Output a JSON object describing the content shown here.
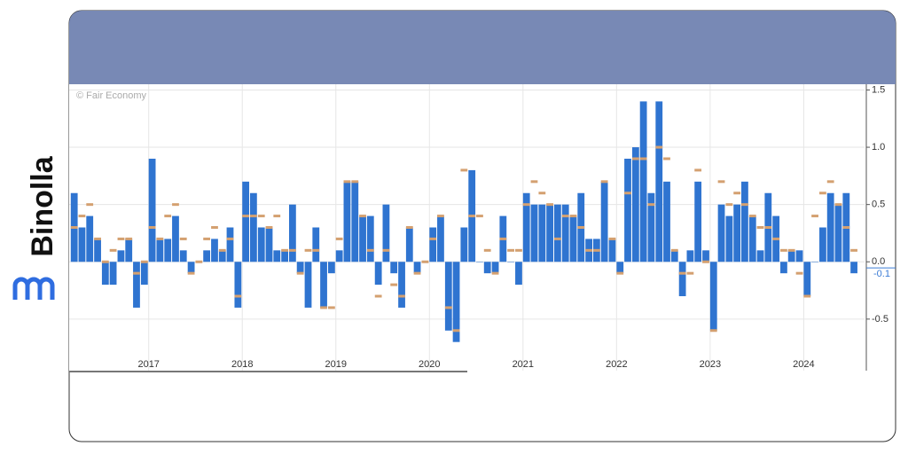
{
  "brand": "Binolla",
  "credit": "© Fair Economy",
  "chart_data": {
    "type": "bar",
    "x": [
      2016.167,
      2016.25,
      2016.333,
      2016.417,
      2016.5,
      2016.583,
      2016.667,
      2016.75,
      2016.833,
      2016.917,
      2017,
      2017.083,
      2017.167,
      2017.25,
      2017.333,
      2017.417,
      2017.5,
      2017.583,
      2017.667,
      2017.75,
      2017.833,
      2017.917,
      2018,
      2018.083,
      2018.167,
      2018.25,
      2018.333,
      2018.417,
      2018.5,
      2018.583,
      2018.667,
      2018.75,
      2018.833,
      2018.917,
      2019,
      2019.083,
      2019.167,
      2019.25,
      2019.333,
      2019.417,
      2019.5,
      2019.583,
      2019.667,
      2019.75,
      2019.833,
      2019.917,
      2020,
      2020.083,
      2020.167,
      2020.25,
      2020.333,
      2020.417,
      2020.5,
      2020.583,
      2020.667,
      2020.75,
      2020.833,
      2020.917,
      2021,
      2021.083,
      2021.167,
      2021.25,
      2021.333,
      2021.417,
      2021.5,
      2021.583,
      2021.667,
      2021.75,
      2021.833,
      2021.917,
      2022,
      2022.083,
      2022.167,
      2022.25,
      2022.333,
      2022.417,
      2022.5,
      2022.583,
      2022.667,
      2022.75,
      2022.833,
      2022.917,
      2023,
      2023.083,
      2023.167,
      2023.25,
      2023.333,
      2023.417,
      2023.5,
      2023.583,
      2023.667,
      2023.75,
      2023.833,
      2023.917,
      2024,
      2024.083,
      2024.167,
      2024.25,
      2024.333,
      2024.417,
      2024.5
    ],
    "bar_width": 0.0833,
    "series": [
      {
        "mark": "bar",
        "color": "#2f74d0",
        "values": [
          0.6,
          0.3,
          0.4,
          0.2,
          -0.2,
          -0.2,
          0.1,
          0.2,
          -0.4,
          -0.2,
          0.9,
          0.2,
          0.2,
          0.4,
          0.1,
          -0.1,
          0.0,
          0.1,
          0.2,
          0.1,
          0.3,
          -0.4,
          0.7,
          0.6,
          0.3,
          0.3,
          0.1,
          0.1,
          0.5,
          -0.1,
          -0.4,
          0.3,
          -0.4,
          -0.1,
          0.1,
          0.7,
          0.7,
          0.4,
          0.4,
          -0.2,
          0.5,
          -0.1,
          -0.4,
          0.3,
          -0.1,
          0.0,
          0.3,
          0.4,
          -0.6,
          -0.7,
          0.3,
          0.8,
          0.0,
          -0.1,
          -0.1,
          0.4,
          0.0,
          -0.2,
          0.6,
          0.5,
          0.5,
          0.5,
          0.5,
          0.5,
          0.4,
          0.6,
          0.2,
          0.2,
          0.7,
          0.2,
          -0.1,
          0.9,
          1.0,
          1.4,
          0.6,
          1.4,
          0.7,
          0.1,
          -0.3,
          0.1,
          0.7,
          0.1,
          -0.6,
          0.5,
          0.4,
          0.5,
          0.7,
          0.4,
          0.1,
          0.6,
          0.4,
          -0.1,
          0.1,
          0.1,
          -0.3,
          0.0,
          0.3,
          0.6,
          0.5,
          0.6,
          -0.1
        ]
      },
      {
        "mark": "dash",
        "color": "#d4a070",
        "values": [
          0.3,
          0.4,
          0.5,
          0.2,
          0.0,
          0.1,
          0.2,
          0.2,
          -0.1,
          0.0,
          0.3,
          0.2,
          0.4,
          0.5,
          0.2,
          -0.1,
          0.0,
          0.2,
          0.3,
          0.1,
          0.2,
          -0.3,
          0.4,
          0.4,
          0.4,
          0.3,
          0.4,
          0.1,
          0.1,
          -0.1,
          0.1,
          0.1,
          -0.4,
          -0.4,
          0.2,
          0.7,
          0.7,
          0.4,
          0.1,
          -0.3,
          0.1,
          -0.2,
          -0.3,
          0.3,
          -0.1,
          0.0,
          0.2,
          0.4,
          -0.4,
          -0.6,
          0.8,
          0.4,
          0.4,
          0.1,
          -0.1,
          0.2,
          0.1,
          0.1,
          0.5,
          0.7,
          0.6,
          0.5,
          0.2,
          0.4,
          0.4,
          0.3,
          0.1,
          0.1,
          0.7,
          0.2,
          -0.1,
          0.6,
          0.9,
          0.9,
          0.5,
          1.0,
          0.9,
          0.1,
          -0.1,
          -0.1,
          0.8,
          0.0,
          -0.6,
          0.7,
          0.5,
          0.6,
          0.5,
          0.4,
          0.3,
          0.3,
          0.2,
          0.1,
          0.1,
          -0.1,
          -0.3,
          0.4,
          0.6,
          0.7,
          0.5,
          0.3,
          0.1
        ]
      }
    ],
    "current_value": {
      "value": -0.1,
      "label": "-0.1"
    },
    "xlim": [
      2016.15,
      2024.65
    ],
    "xticks": [
      2017,
      2018,
      2019,
      2020,
      2021,
      2022,
      2023,
      2024
    ],
    "ylim": [
      -0.95,
      1.55
    ],
    "yticks": [
      {
        "value": -0.5,
        "label": "-0.5"
      },
      {
        "value": 0,
        "label": "0.0"
      },
      {
        "value": 0.5,
        "label": "0.5"
      },
      {
        "value": 1,
        "label": "1.0"
      },
      {
        "value": 1.5,
        "label": "1.5"
      }
    ],
    "grid": true
  }
}
